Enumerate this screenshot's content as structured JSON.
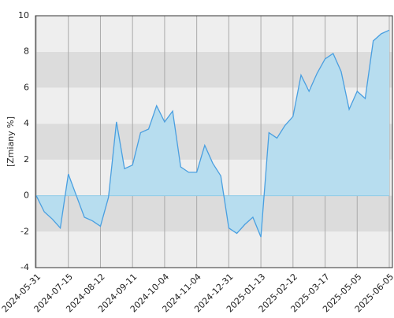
{
  "chart_data": {
    "type": "area",
    "y_label": "[Zmiany %]",
    "categories": [
      "2024-05-31",
      null,
      null,
      null,
      "2024-07-15",
      null,
      null,
      null,
      "2024-08-12",
      null,
      null,
      null,
      "2024-09-11",
      null,
      null,
      null,
      "2024-10-04",
      null,
      null,
      null,
      "2024-11-04",
      null,
      null,
      null,
      "2024-12-31",
      null,
      null,
      null,
      "2025-01-13",
      null,
      null,
      null,
      "2025-02-12",
      null,
      null,
      null,
      "2025-03-17",
      null,
      null,
      null,
      "2025-05-05",
      null,
      null,
      null,
      "2025-06-05"
    ],
    "series": [
      {
        "color": "#4a9fe0",
        "values": [
          0,
          -0.9,
          -1.3,
          -1.8,
          1.2,
          0.0,
          -1.2,
          -1.4,
          -1.7,
          -0.1,
          4.1,
          1.5,
          1.7,
          3.5,
          3.7,
          5.0,
          4.1,
          4.7,
          1.6,
          1.3,
          1.3,
          2.8,
          1.8,
          1.1,
          -1.8,
          -2.1,
          -1.6,
          -1.2,
          -2.3,
          3.5,
          3.2,
          3.9,
          4.4,
          6.7,
          5.8,
          6.8,
          7.6,
          7.9,
          6.9,
          4.8,
          5.8,
          5.4,
          8.6,
          9.0,
          9.2
        ]
      }
    ],
    "fill_color": "#b7ddef",
    "ylim": [
      -4,
      10
    ],
    "yticks": [
      -4,
      -2,
      0,
      2,
      4,
      6,
      8,
      10
    ],
    "grid": true
  }
}
